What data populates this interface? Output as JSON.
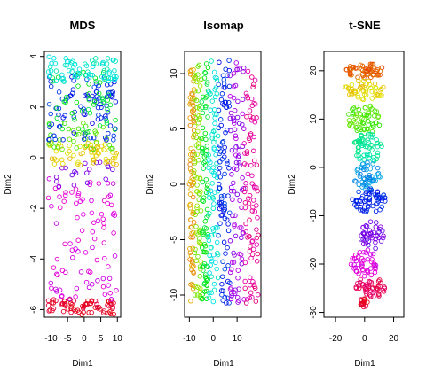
{
  "chart_data": [
    {
      "type": "scatter",
      "title": "MDS",
      "xlabel": "Dim1",
      "ylabel": "Dim2",
      "xlim": [
        -12,
        11
      ],
      "ylim": [
        -6.3,
        4.2
      ],
      "xticks": [
        -10,
        -5,
        0,
        5,
        10
      ],
      "yticks": [
        -6,
        -4,
        -2,
        0,
        2,
        4
      ],
      "color_scale": "rainbow",
      "bands": [
        {
          "y": [
            -6.2,
            -5.6
          ],
          "hue": 350,
          "n": 70
        },
        {
          "y": [
            -5.6,
            -0.8
          ],
          "hue": 300,
          "n": 90
        },
        {
          "y": [
            -1.2,
            0.1
          ],
          "hue": 275,
          "n": 20
        },
        {
          "y": [
            -0.3,
            0.6
          ],
          "hue": 55,
          "n": 60
        },
        {
          "y": [
            0.3,
            1.4
          ],
          "hue": 100,
          "n": 35
        },
        {
          "y": [
            0.6,
            3.3
          ],
          "hue": 230,
          "n": 90
        },
        {
          "y": [
            1.0,
            3.4
          ],
          "hue": 130,
          "n": 45
        },
        {
          "y": [
            3.0,
            4.0
          ],
          "hue": 175,
          "n": 70
        }
      ]
    },
    {
      "type": "scatter",
      "title": "Isomap",
      "xlabel": "Dim1",
      "ylabel": "Dim2",
      "xlim": [
        -12,
        20
      ],
      "ylim": [
        -12,
        12
      ],
      "xticks": [
        -10,
        0,
        10
      ],
      "yticks": [
        -10,
        -5,
        0,
        5,
        10
      ],
      "color_scale": "rainbow",
      "columns": [
        {
          "x": [
            -10,
            -8
          ],
          "hue": 40,
          "n": 80
        },
        {
          "x": [
            -8,
            -5
          ],
          "hue": 85,
          "n": 80
        },
        {
          "x": [
            -5,
            -2
          ],
          "hue": 130,
          "n": 80
        },
        {
          "x": [
            -2,
            2
          ],
          "hue": 175,
          "n": 80
        },
        {
          "x": [
            2,
            7
          ],
          "hue": 230,
          "n": 90
        },
        {
          "x": [
            7,
            13
          ],
          "hue": 280,
          "n": 90
        },
        {
          "x": [
            13,
            19
          ],
          "hue": 320,
          "n": 90
        }
      ]
    },
    {
      "type": "scatter",
      "title": "t-SNE",
      "xlabel": "Dim1",
      "ylabel": "Dim2",
      "xlim": [
        -28,
        27
      ],
      "ylim": [
        -31,
        24
      ],
      "xticks": [
        -20,
        0,
        20
      ],
      "yticks": [
        -30,
        -20,
        -10,
        0,
        10,
        20
      ],
      "color_scale": "rainbow",
      "clusters": [
        {
          "cx": 0,
          "cy": 20,
          "rx": 14,
          "ry": 1.5,
          "hue": 25,
          "n": 60
        },
        {
          "cx": 0,
          "cy": 16,
          "rx": 14,
          "ry": 2,
          "hue": 55,
          "n": 50
        },
        {
          "cx": 0,
          "cy": 10,
          "rx": 12,
          "ry": 3,
          "hue": 100,
          "n": 60
        },
        {
          "cx": 2,
          "cy": 4,
          "rx": 10,
          "ry": 3,
          "hue": 160,
          "n": 60
        },
        {
          "cx": 2,
          "cy": -2,
          "rx": 9,
          "ry": 3,
          "hue": 200,
          "n": 50
        },
        {
          "cx": 3,
          "cy": -7,
          "rx": 12,
          "ry": 2.5,
          "hue": 230,
          "n": 60
        },
        {
          "cx": 5,
          "cy": -14,
          "rx": 8,
          "ry": 3,
          "hue": 270,
          "n": 40
        },
        {
          "cx": 0,
          "cy": -20,
          "rx": 10,
          "ry": 3,
          "hue": 300,
          "n": 45
        },
        {
          "cx": 4,
          "cy": -25,
          "rx": 10,
          "ry": 2.5,
          "hue": 335,
          "n": 50
        },
        {
          "cx": -1,
          "cy": -28,
          "rx": 3,
          "ry": 1,
          "hue": 350,
          "n": 15
        }
      ]
    }
  ]
}
